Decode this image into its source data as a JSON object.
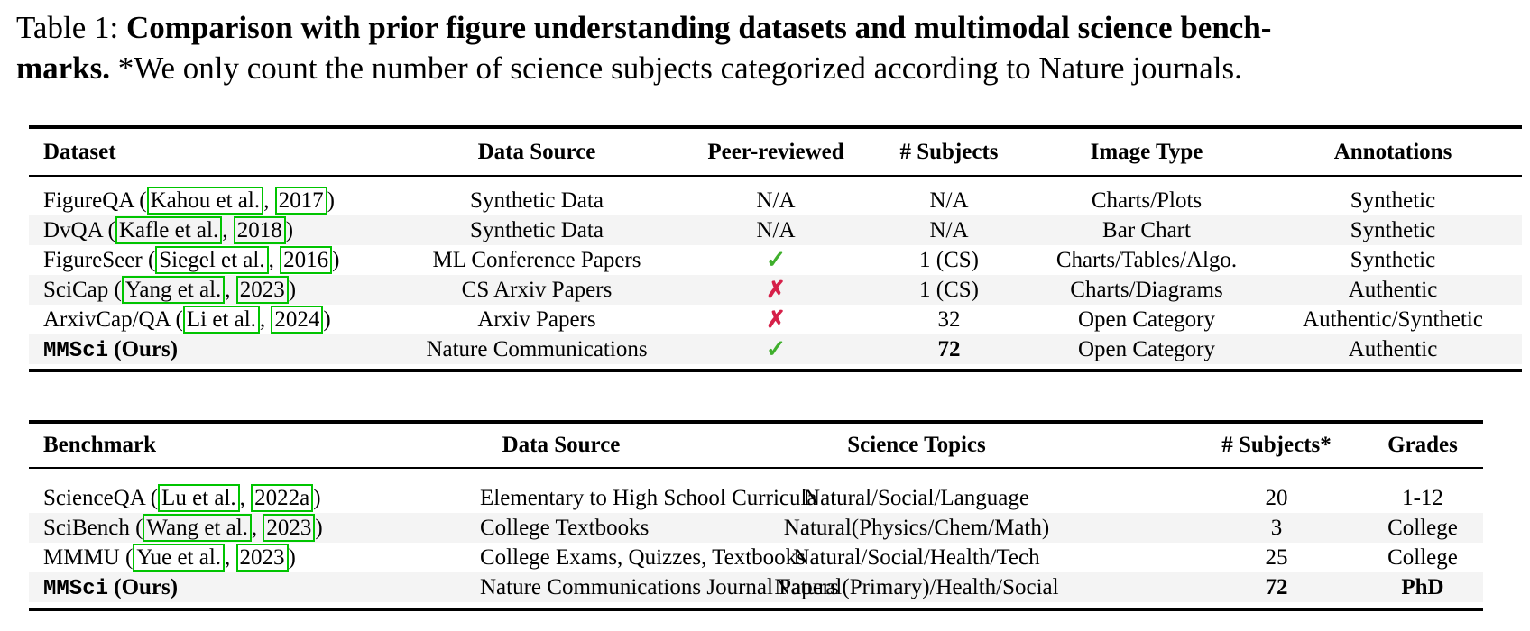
{
  "caption": {
    "label": "Table 1: ",
    "bold_line1": "Comparison with prior figure understanding datasets and multimodal science bench-",
    "bold_line2": "marks.",
    "normal_line2": " *We only count the number of science subjects categorized according to Nature journals."
  },
  "colors": {
    "stripe": "#f4f4f4",
    "check_green": "#3faf2c",
    "cross_red": "#d62049",
    "citation_box_green": "#00c400"
  },
  "icons": {
    "check": "✓",
    "cross": "✗"
  },
  "table1": {
    "headers": [
      "Dataset",
      "Data Source",
      "Peer-reviewed",
      "# Subjects",
      "Image Type",
      "Annotations"
    ],
    "rows": [
      [
        [
          {
            "t": "FigureQA ("
          },
          {
            "t": "Kahou et al.",
            "s": "cite"
          },
          {
            "t": ", "
          },
          {
            "t": "2017",
            "s": "cite"
          },
          {
            "t": ")"
          }
        ],
        [
          {
            "t": "Synthetic Data"
          }
        ],
        [
          {
            "t": "N/A"
          }
        ],
        [
          {
            "t": "N/A"
          }
        ],
        [
          {
            "t": "Charts/Plots"
          }
        ],
        [
          {
            "t": "Synthetic"
          }
        ]
      ],
      [
        [
          {
            "t": "DvQA ("
          },
          {
            "t": "Kafle et al.",
            "s": "cite"
          },
          {
            "t": ", "
          },
          {
            "t": "2018",
            "s": "cite"
          },
          {
            "t": ")"
          }
        ],
        [
          {
            "t": "Synthetic Data"
          }
        ],
        [
          {
            "t": "N/A"
          }
        ],
        [
          {
            "t": "N/A"
          }
        ],
        [
          {
            "t": "Bar Chart"
          }
        ],
        [
          {
            "t": "Synthetic"
          }
        ]
      ],
      [
        [
          {
            "t": "FigureSeer ("
          },
          {
            "t": "Siegel et al.",
            "s": "cite"
          },
          {
            "t": ", "
          },
          {
            "t": "2016",
            "s": "cite"
          },
          {
            "t": ")"
          }
        ],
        [
          {
            "t": "ML Conference Papers"
          }
        ],
        [
          {
            "t": "✓",
            "s": "check"
          }
        ],
        [
          {
            "t": "1 (CS)"
          }
        ],
        [
          {
            "t": "Charts/Tables/Algo."
          }
        ],
        [
          {
            "t": "Synthetic"
          }
        ]
      ],
      [
        [
          {
            "t": "SciCap ("
          },
          {
            "t": "Yang et al.",
            "s": "cite"
          },
          {
            "t": ", "
          },
          {
            "t": "2023",
            "s": "cite"
          },
          {
            "t": ")"
          }
        ],
        [
          {
            "t": "CS Arxiv Papers"
          }
        ],
        [
          {
            "t": "✗",
            "s": "cross"
          }
        ],
        [
          {
            "t": "1 (CS)"
          }
        ],
        [
          {
            "t": "Charts/Diagrams"
          }
        ],
        [
          {
            "t": "Authentic"
          }
        ]
      ],
      [
        [
          {
            "t": "ArxivCap/QA ("
          },
          {
            "t": "Li et al.",
            "s": "cite"
          },
          {
            "t": ", "
          },
          {
            "t": "2024",
            "s": "cite"
          },
          {
            "t": ")"
          }
        ],
        [
          {
            "t": "Arxiv Papers"
          }
        ],
        [
          {
            "t": "✗",
            "s": "cross"
          }
        ],
        [
          {
            "t": "32"
          }
        ],
        [
          {
            "t": "Open Category"
          }
        ],
        [
          {
            "t": "Authentic/Synthetic"
          }
        ]
      ],
      [
        [
          {
            "t": "MMSci",
            "s": "mono"
          },
          {
            "t": " (Ours)",
            "s": "bold"
          }
        ],
        [
          {
            "t": "Nature Communications"
          }
        ],
        [
          {
            "t": "✓",
            "s": "check"
          }
        ],
        [
          {
            "t": "72",
            "s": "bold"
          }
        ],
        [
          {
            "t": "Open Category"
          }
        ],
        [
          {
            "t": "Authentic"
          }
        ]
      ]
    ]
  },
  "table2": {
    "headers": [
      "Benchmark",
      "Data Source",
      "Science Topics",
      "# Subjects*",
      "Grades"
    ],
    "rows": [
      [
        [
          {
            "t": "ScienceQA ("
          },
          {
            "t": "Lu et al.",
            "s": "cite"
          },
          {
            "t": ", "
          },
          {
            "t": "2022a",
            "s": "cite"
          },
          {
            "t": ")"
          }
        ],
        [
          {
            "t": "Elementary to High School Curricula"
          }
        ],
        [
          {
            "t": "Natural/Social/Language"
          }
        ],
        [
          {
            "t": "20"
          }
        ],
        [
          {
            "t": "1-12"
          }
        ]
      ],
      [
        [
          {
            "t": "SciBench ("
          },
          {
            "t": "Wang et al.",
            "s": "cite"
          },
          {
            "t": ", "
          },
          {
            "t": "2023",
            "s": "cite"
          },
          {
            "t": ")"
          }
        ],
        [
          {
            "t": "College Textbooks"
          }
        ],
        [
          {
            "t": "Natural(Physics/Chem/Math)"
          }
        ],
        [
          {
            "t": "3"
          }
        ],
        [
          {
            "t": "College"
          }
        ]
      ],
      [
        [
          {
            "t": "MMMU ("
          },
          {
            "t": "Yue et al.",
            "s": "cite"
          },
          {
            "t": ", "
          },
          {
            "t": "2023",
            "s": "cite"
          },
          {
            "t": ")"
          }
        ],
        [
          {
            "t": "College Exams, Quizzes, Textbooks"
          }
        ],
        [
          {
            "t": "Natural/Social/Health/Tech"
          }
        ],
        [
          {
            "t": "25"
          }
        ],
        [
          {
            "t": "College"
          }
        ]
      ],
      [
        [
          {
            "t": "MMSci",
            "s": "mono"
          },
          {
            "t": " (Ours)",
            "s": "bold"
          }
        ],
        [
          {
            "t": "Nature Communications Journal Papers"
          }
        ],
        [
          {
            "t": "Natural(Primary)/Health/Social"
          }
        ],
        [
          {
            "t": "72",
            "s": "bold"
          }
        ],
        [
          {
            "t": "PhD",
            "s": "bold"
          }
        ]
      ]
    ]
  }
}
